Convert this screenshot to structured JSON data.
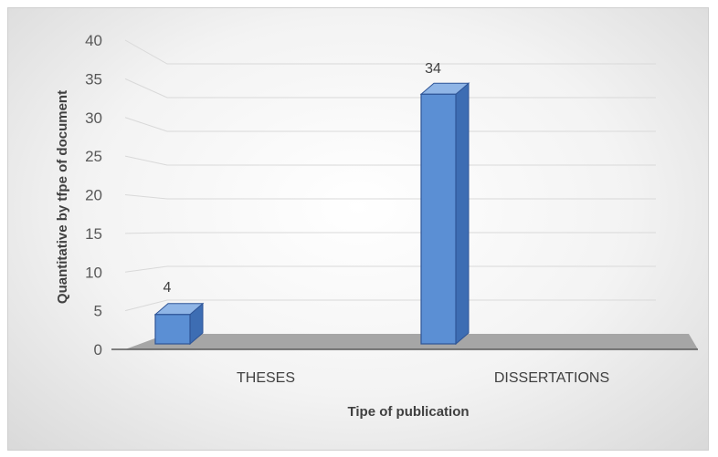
{
  "chart_data": {
    "type": "bar",
    "style": "3d-column",
    "categories": [
      "THESES",
      "DISSERTATIONS"
    ],
    "values": [
      4,
      34
    ],
    "data_labels": [
      "4",
      "34"
    ],
    "title": "",
    "xlabel": "Tipe of publication",
    "ylabel": "Quantitative by tfpe of document",
    "ylim": [
      0,
      40
    ],
    "yticks": [
      "0",
      "5",
      "10",
      "15",
      "20",
      "25",
      "30",
      "35",
      "40"
    ],
    "grid": true,
    "legend": "none",
    "colors": {
      "bar": "#5b8fd4",
      "bar_side": "#3d6db3",
      "bar_top": "#8fb5e6",
      "floor": "#a6a6a6",
      "grid": "#d9d9d9"
    }
  }
}
